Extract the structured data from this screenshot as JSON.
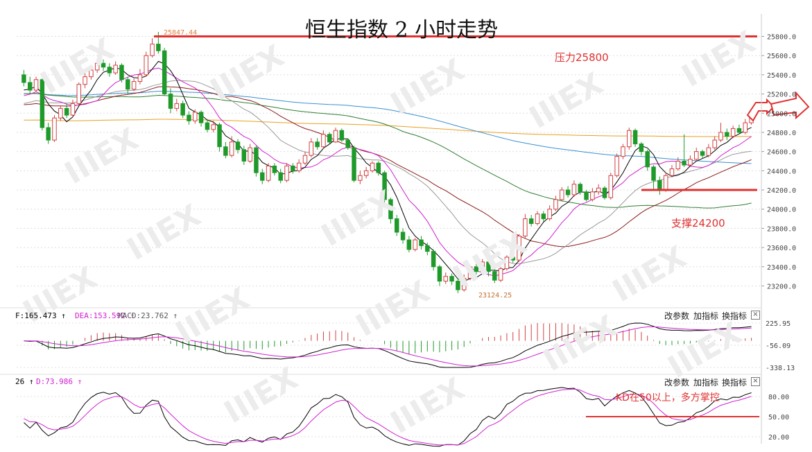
{
  "title": "恒生指数 2 小时走势",
  "annotations": {
    "resistance": "压力25800",
    "support": "支撑24200",
    "kd_note": "KD在50以上，多方掌控"
  },
  "price_markers": {
    "high_label": "25847.44",
    "low_label": "23124.25"
  },
  "macd_panel": {
    "label_dif": "F:165.473 ↑",
    "label_dea": "DEA:153.592 ↑",
    "label_macd": "MACD:23.762 ↑",
    "ticks": [
      "225.95",
      "-56.09",
      "-338.13"
    ]
  },
  "kd_panel": {
    "label_k": "26 ↑",
    "label_d": "D:73.986 ↑",
    "ticks": [
      "80.00",
      "50.00",
      "20.00"
    ]
  },
  "toolbar": {
    "params": "改参数",
    "add": "加指标",
    "swap": "换指标",
    "close": "×"
  },
  "watermark": "IIIEX",
  "colors": {
    "up": "#d04040",
    "down": "#1f9a2a",
    "level": "#e03030",
    "ma5": "#000000",
    "ma10": "#d020d0",
    "ma20": "#999999",
    "ma30": "#8b1a1a",
    "ma60": "#2e7d32",
    "ma120": "#3a8fd0",
    "ma250": "#e8a020"
  },
  "chart_data": [
    {
      "type": "candlestick",
      "title": "恒生指数 2 小时走势",
      "y_ticks": [
        25800,
        25600,
        25400,
        25200,
        25000,
        24800,
        24600,
        24400,
        24200,
        24000,
        23800,
        23600,
        23400,
        23200
      ],
      "ylim": [
        23050,
        25950
      ],
      "grid": true,
      "levels": [
        {
          "name": "压力25800",
          "value": 25800
        },
        {
          "name": "支撑24200",
          "value": 24200
        }
      ],
      "high": 25847.44,
      "low": 23124.25,
      "candles": [
        [
          25400,
          25320,
          25450,
          25280
        ],
        [
          25320,
          25240,
          25380,
          25200
        ],
        [
          25240,
          25350,
          25380,
          25220
        ],
        [
          25350,
          24850,
          25360,
          24820
        ],
        [
          24850,
          24720,
          24900,
          24680
        ],
        [
          24720,
          24950,
          24980,
          24700
        ],
        [
          24950,
          25050,
          25080,
          24920
        ],
        [
          25050,
          24980,
          25100,
          24950
        ],
        [
          24980,
          25100,
          25140,
          24960
        ],
        [
          25100,
          25300,
          25320,
          25080
        ],
        [
          25300,
          25380,
          25420,
          25260
        ],
        [
          25380,
          25450,
          25480,
          25350
        ],
        [
          25450,
          25520,
          25560,
          25420
        ],
        [
          25520,
          25480,
          25560,
          25440
        ],
        [
          25480,
          25420,
          25520,
          25380
        ],
        [
          25420,
          25500,
          25540,
          25400
        ],
        [
          25500,
          25350,
          25520,
          25320
        ],
        [
          25350,
          25250,
          25380,
          25200
        ],
        [
          25250,
          25330,
          25360,
          25230
        ],
        [
          25330,
          25400,
          25460,
          25300
        ],
        [
          25400,
          25600,
          25640,
          25380
        ],
        [
          25600,
          25720,
          25780,
          25580
        ],
        [
          25720,
          25650,
          25847,
          25620
        ],
        [
          25650,
          25200,
          25680,
          25180
        ],
        [
          25200,
          25050,
          25260,
          25000
        ],
        [
          25050,
          25100,
          25150,
          25020
        ],
        [
          25100,
          24980,
          25130,
          24950
        ],
        [
          24980,
          24920,
          25020,
          24880
        ],
        [
          24920,
          25010,
          25040,
          24890
        ],
        [
          25010,
          24900,
          25030,
          24860
        ],
        [
          24900,
          24830,
          24940,
          24800
        ],
        [
          24830,
          24880,
          24920,
          24800
        ],
        [
          24880,
          24650,
          24900,
          24600
        ],
        [
          24650,
          24560,
          24700,
          24530
        ],
        [
          24560,
          24700,
          24760,
          24540
        ],
        [
          24700,
          24620,
          24730,
          24580
        ],
        [
          24620,
          24500,
          24660,
          24460
        ],
        [
          24500,
          24640,
          24680,
          24480
        ],
        [
          24640,
          24380,
          24660,
          24340
        ],
        [
          24380,
          24300,
          24420,
          24260
        ],
        [
          24300,
          24450,
          24480,
          24280
        ],
        [
          24450,
          24380,
          24480,
          24350
        ],
        [
          24380,
          24300,
          24420,
          24270
        ],
        [
          24300,
          24450,
          24480,
          24280
        ],
        [
          24450,
          24400,
          24480,
          24370
        ],
        [
          24400,
          24480,
          24520,
          24380
        ],
        [
          24480,
          24560,
          24600,
          24460
        ],
        [
          24560,
          24700,
          24740,
          24540
        ],
        [
          24700,
          24650,
          24740,
          24620
        ],
        [
          24650,
          24780,
          24820,
          24630
        ],
        [
          24780,
          24700,
          24800,
          24680
        ],
        [
          24700,
          24820,
          24850,
          24690
        ],
        [
          24820,
          24720,
          24840,
          24700
        ],
        [
          24720,
          24640,
          24740,
          24620
        ],
        [
          24640,
          24300,
          24660,
          24280
        ],
        [
          24300,
          24350,
          24400,
          24260
        ],
        [
          24350,
          24400,
          24440,
          24320
        ],
        [
          24400,
          24480,
          24500,
          24380
        ],
        [
          24480,
          24380,
          24500,
          24350
        ],
        [
          24380,
          24100,
          24400,
          24060
        ],
        [
          24100,
          23900,
          24120,
          23850
        ],
        [
          23900,
          23760,
          23940,
          23720
        ],
        [
          23760,
          23680,
          23800,
          23640
        ],
        [
          23680,
          23580,
          23720,
          23550
        ],
        [
          23580,
          23680,
          23700,
          23560
        ],
        [
          23680,
          23620,
          23720,
          23580
        ],
        [
          23620,
          23560,
          23650,
          23520
        ],
        [
          23560,
          23400,
          23580,
          23360
        ],
        [
          23400,
          23250,
          23420,
          23200
        ],
        [
          23250,
          23300,
          23340,
          23220
        ],
        [
          23300,
          23250,
          23330,
          23210
        ],
        [
          23250,
          23160,
          23280,
          23124
        ],
        [
          23160,
          23280,
          23320,
          23140
        ],
        [
          23280,
          23400,
          23420,
          23260
        ],
        [
          23400,
          23350,
          23440,
          23320
        ],
        [
          23350,
          23450,
          23480,
          23330
        ],
        [
          23450,
          23350,
          23480,
          23300
        ],
        [
          23350,
          23260,
          23380,
          23230
        ],
        [
          23260,
          23380,
          23400,
          23240
        ],
        [
          23380,
          23500,
          23520,
          23360
        ],
        [
          23500,
          23470,
          23540,
          23440
        ],
        [
          23470,
          23720,
          23740,
          23450
        ],
        [
          23720,
          23900,
          23950,
          23700
        ],
        [
          23900,
          23850,
          23940,
          23820
        ],
        [
          23850,
          23950,
          23980,
          23830
        ],
        [
          23950,
          23900,
          23980,
          23870
        ],
        [
          23900,
          24000,
          24040,
          23880
        ],
        [
          24000,
          24100,
          24140,
          23980
        ],
        [
          24100,
          24200,
          24230,
          24080
        ],
        [
          24200,
          24150,
          24240,
          24120
        ],
        [
          24150,
          24260,
          24300,
          24130
        ],
        [
          24260,
          24180,
          24280,
          24150
        ],
        [
          24180,
          24100,
          24200,
          24080
        ],
        [
          24100,
          24180,
          24220,
          24080
        ],
        [
          24180,
          24220,
          24260,
          24150
        ],
        [
          24220,
          24120,
          24240,
          24100
        ],
        [
          24120,
          24350,
          24380,
          24100
        ],
        [
          24350,
          24550,
          24580,
          24330
        ],
        [
          24550,
          24650,
          24680,
          24520
        ],
        [
          24650,
          24820,
          24850,
          24620
        ],
        [
          24820,
          24680,
          24840,
          24650
        ],
        [
          24680,
          24600,
          24700,
          24560
        ],
        [
          24600,
          24440,
          24620,
          24400
        ],
        [
          24440,
          24300,
          24460,
          24200
        ],
        [
          24300,
          24200,
          24340,
          24150
        ],
        [
          24200,
          24350,
          24380,
          24180
        ],
        [
          24350,
          24420,
          24460,
          24330
        ],
        [
          24420,
          24500,
          24540,
          24400
        ],
        [
          24500,
          24460,
          24780,
          24440
        ],
        [
          24460,
          24520,
          24560,
          24440
        ],
        [
          24520,
          24600,
          24640,
          24500
        ],
        [
          24600,
          24560,
          24620,
          24530
        ],
        [
          24560,
          24640,
          24680,
          24540
        ],
        [
          24640,
          24720,
          24760,
          24620
        ],
        [
          24720,
          24800,
          24900,
          24700
        ],
        [
          24800,
          24760,
          24840,
          24720
        ],
        [
          24760,
          24840,
          24870,
          24740
        ],
        [
          24840,
          24800,
          24880,
          24780
        ],
        [
          24800,
          24900,
          24940,
          24780
        ],
        [
          24900,
          24960,
          25000,
          24880
        ]
      ]
    },
    {
      "type": "macd",
      "y_ticks": [
        225.95,
        -56.09,
        -338.13
      ],
      "current": {
        "DIF": 165.473,
        "DEA": 153.592,
        "MACD": 23.762
      }
    },
    {
      "type": "kd",
      "y_ticks": [
        80,
        50,
        20
      ],
      "level": 50,
      "current": {
        "D": 73.986
      }
    }
  ]
}
